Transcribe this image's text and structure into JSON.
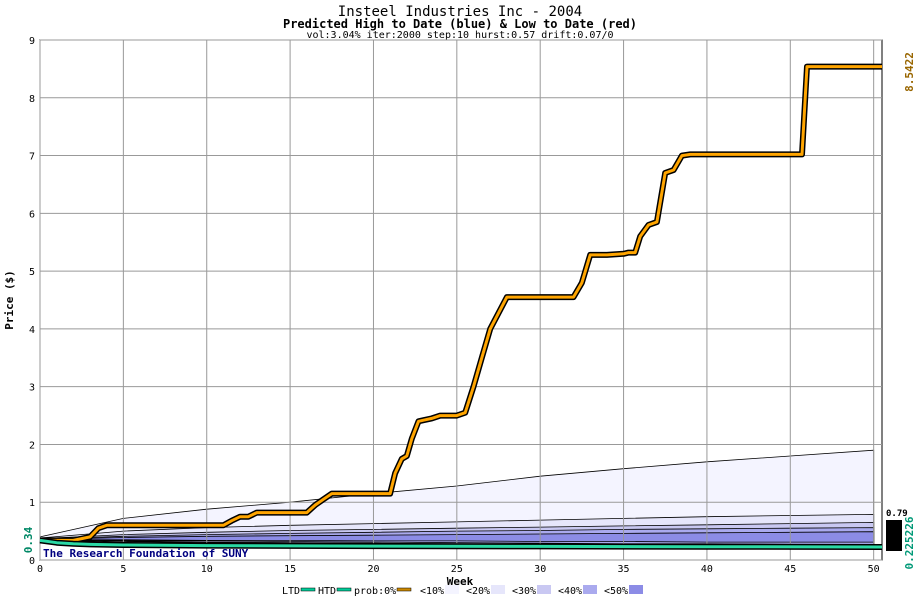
{
  "chart_data": {
    "type": "line",
    "title": "Insteel Industries Inc - 2004",
    "subtitle": "Predicted High to Date (blue) &  Low to Date (red)",
    "params": "vol:3.04% iter:2000 step:10 hurst:0.57 drift:0.07/0",
    "xlabel": "Week",
    "ylabel": "Price ($)",
    "xlim": [
      0,
      50.5
    ],
    "ylim": [
      0,
      9
    ],
    "x_ticks": [
      0,
      5,
      10,
      15,
      20,
      25,
      30,
      35,
      40,
      45,
      50
    ],
    "y_ticks": [
      0,
      1,
      2,
      3,
      4,
      5,
      6,
      7,
      8,
      9
    ],
    "grid": true,
    "start_price_label": "0.34",
    "right_labels": {
      "high": "8.5422",
      "low": "0.225226",
      "top_band": "0.79"
    },
    "watermark": "The Research Foundation of SUNY",
    "legend": {
      "items": [
        "LTD",
        "HTD",
        "prob:0%",
        "<10%",
        "<20%",
        "<30%",
        "<40%",
        "<50%"
      ],
      "colors": [
        "#00cc99",
        "#00cc99",
        "#cc8800",
        "#f4f4ff",
        "#e6e6fb",
        "#c9c8f2",
        "#aaaaee",
        "#8c8ce6"
      ]
    },
    "colors": {
      "htd_actual": "#ffa500",
      "ltd_actual": "#2bd9a5",
      "high_label": "#996600",
      "low_label": "#009977",
      "watermark": "#000080",
      "band_outer": "#f4f4ff",
      "band_mid": "#e6e6fb",
      "band_inner": "#c9c8f2",
      "band_core": "#aaaaee",
      "band_dark": "#8c8ce6"
    },
    "bands": [
      {
        "name": "<10%",
        "x": [
          0,
          5,
          10,
          15,
          20,
          25,
          30,
          35,
          40,
          45,
          50
        ],
        "upper": [
          0.4,
          0.72,
          0.88,
          1.0,
          1.15,
          1.28,
          1.45,
          1.58,
          1.7,
          1.8,
          1.9
        ],
        "lower": [
          0.36,
          0.3,
          0.27,
          0.25,
          0.24,
          0.23,
          0.22,
          0.21,
          0.2,
          0.19,
          0.19
        ]
      },
      {
        "name": "<20%",
        "x": [
          0,
          5,
          10,
          15,
          20,
          25,
          30,
          35,
          40,
          45,
          50
        ],
        "upper": [
          0.38,
          0.5,
          0.56,
          0.6,
          0.63,
          0.66,
          0.69,
          0.72,
          0.75,
          0.77,
          0.79
        ],
        "lower": [
          0.35,
          0.32,
          0.3,
          0.28,
          0.27,
          0.26,
          0.25,
          0.24,
          0.23,
          0.23,
          0.225
        ]
      },
      {
        "name": "<30%",
        "x": [
          0,
          5,
          10,
          15,
          20,
          25,
          30,
          35,
          40,
          45,
          50
        ],
        "upper": [
          0.37,
          0.44,
          0.48,
          0.51,
          0.53,
          0.55,
          0.57,
          0.59,
          0.61,
          0.63,
          0.65
        ],
        "lower": [
          0.35,
          0.33,
          0.31,
          0.3,
          0.29,
          0.28,
          0.27,
          0.26,
          0.25,
          0.25,
          0.24
        ]
      },
      {
        "name": "<40%",
        "x": [
          0,
          5,
          10,
          15,
          20,
          25,
          30,
          35,
          40,
          45,
          50
        ],
        "upper": [
          0.36,
          0.41,
          0.44,
          0.46,
          0.48,
          0.5,
          0.51,
          0.53,
          0.54,
          0.55,
          0.56
        ],
        "lower": [
          0.35,
          0.34,
          0.33,
          0.32,
          0.31,
          0.3,
          0.29,
          0.28,
          0.28,
          0.27,
          0.27
        ]
      },
      {
        "name": "<50%",
        "x": [
          0,
          5,
          10,
          15,
          20,
          25,
          30,
          35,
          40,
          45,
          50
        ],
        "upper": [
          0.355,
          0.39,
          0.41,
          0.42,
          0.43,
          0.44,
          0.45,
          0.46,
          0.47,
          0.48,
          0.49
        ],
        "lower": [
          0.35,
          0.35,
          0.34,
          0.34,
          0.33,
          0.33,
          0.32,
          0.32,
          0.31,
          0.31,
          0.31
        ]
      }
    ],
    "series": [
      {
        "name": "HTD",
        "x": [
          0,
          1,
          2,
          3,
          3.5,
          4,
          5,
          6,
          7,
          8,
          9,
          10,
          11,
          11.5,
          12,
          12.5,
          13,
          14,
          15,
          16,
          16.5,
          17,
          17.5,
          18,
          19,
          20,
          21,
          21.3,
          21.7,
          22,
          22.3,
          22.7,
          23,
          23.5,
          24,
          25,
          25.5,
          26,
          26.5,
          27,
          28,
          29,
          30,
          31,
          32,
          32.5,
          33,
          34,
          35,
          35.3,
          35.7,
          36,
          36.5,
          37,
          37.5,
          38,
          38.5,
          39,
          40,
          41,
          42,
          43,
          44,
          45,
          45.7,
          46,
          47,
          48,
          49,
          50.5
        ],
        "y": [
          0.34,
          0.34,
          0.34,
          0.4,
          0.55,
          0.6,
          0.6,
          0.6,
          0.6,
          0.6,
          0.6,
          0.6,
          0.6,
          0.68,
          0.75,
          0.75,
          0.82,
          0.82,
          0.82,
          0.82,
          0.95,
          1.05,
          1.15,
          1.15,
          1.15,
          1.15,
          1.15,
          1.5,
          1.75,
          1.8,
          2.1,
          2.4,
          2.42,
          2.45,
          2.5,
          2.5,
          2.55,
          3.0,
          3.5,
          4.0,
          4.55,
          4.55,
          4.55,
          4.55,
          4.55,
          4.8,
          5.28,
          5.28,
          5.3,
          5.32,
          5.32,
          5.6,
          5.8,
          5.85,
          6.7,
          6.75,
          7.0,
          7.02,
          7.02,
          7.02,
          7.02,
          7.02,
          7.02,
          7.02,
          7.02,
          8.54,
          8.54,
          8.54,
          8.54,
          8.54
        ]
      },
      {
        "name": "LTD",
        "x": [
          0,
          1,
          2,
          3,
          5,
          10,
          20,
          30,
          40,
          50.5
        ],
        "y": [
          0.34,
          0.3,
          0.28,
          0.27,
          0.26,
          0.25,
          0.24,
          0.235,
          0.23,
          0.225
        ]
      }
    ]
  }
}
